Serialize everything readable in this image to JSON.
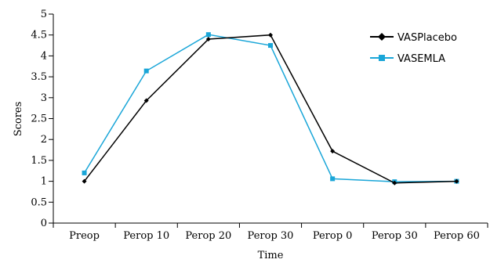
{
  "chart_data": {
    "type": "line",
    "categories": [
      "Preop",
      "Perop 10",
      "Perop 20",
      "Perop 30",
      "Perop 0",
      "Perop 30",
      "Perop 60"
    ],
    "series": [
      {
        "name": "VASPlacebo",
        "values": [
          1.0,
          2.93,
          4.4,
          4.5,
          1.72,
          0.96,
          1.0
        ],
        "color": "#000000",
        "marker": "diamond"
      },
      {
        "name": "VASEMLA",
        "values": [
          1.2,
          3.64,
          4.51,
          4.25,
          1.06,
          0.99,
          1.0
        ],
        "color": "#1aa6d8",
        "marker": "square"
      }
    ],
    "xlabel": "Time",
    "ylabel": "Scores",
    "ylim": [
      0,
      5
    ],
    "yticks": [
      "0",
      "0.5",
      "1",
      "1.5",
      "2",
      "2.5",
      "3",
      "3.5",
      "4",
      "4.5",
      "5"
    ],
    "grid": false,
    "legend": "right"
  }
}
